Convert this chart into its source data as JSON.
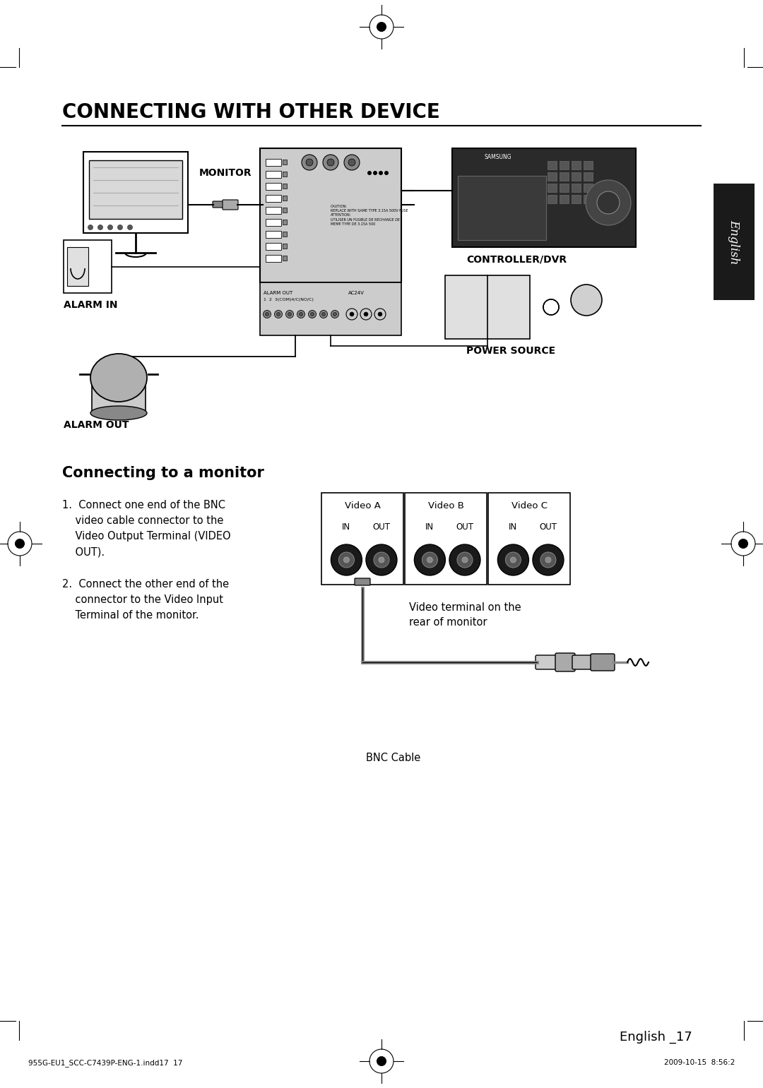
{
  "page_bg": "#ffffff",
  "title": "CONNECTING WITH OTHER DEVICE",
  "title_fontsize": 20,
  "title_color": "#000000",
  "section_title": "Connecting to a monitor",
  "section_title_fontsize": 15,
  "footer_text": "English _17",
  "footer_left": "955G-EU1_SCC-C7439P-ENG-1.indd17  17",
  "footer_right": "2009-10-15  8:56:2",
  "english_tab_color": "#1a1a1a",
  "english_tab_text": "English"
}
